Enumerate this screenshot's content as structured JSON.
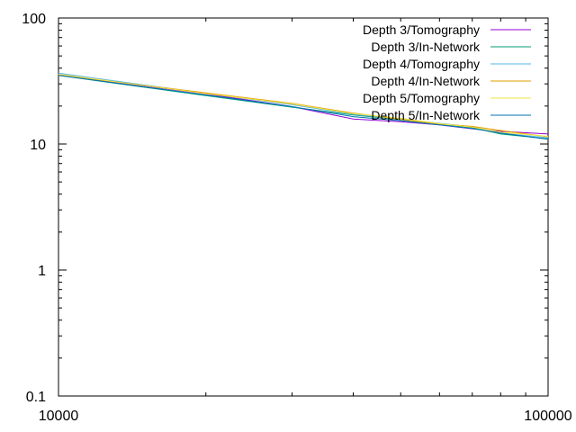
{
  "chart_data": {
    "type": "line",
    "title": "",
    "xlabel": "",
    "ylabel": "",
    "x_scale": "log",
    "y_scale": "log",
    "xlim": [
      10000,
      100000
    ],
    "ylim": [
      0.1,
      100
    ],
    "x_ticks": [
      10000,
      100000
    ],
    "x_tick_labels": [
      "10000",
      "100000"
    ],
    "y_ticks": [
      0.1,
      1,
      10,
      100
    ],
    "y_tick_labels": [
      "0.1",
      "1",
      "10",
      "100"
    ],
    "grid": false,
    "legend_position": "top-right",
    "x": [
      10000,
      20000,
      30000,
      40000,
      50000,
      60000,
      70000,
      80000,
      100000
    ],
    "series": [
      {
        "name": "Depth 3/Tomography",
        "color": "#9400d3",
        "values": [
          35.5,
          25.0,
          19.8,
          15.8,
          15.0,
          14.2,
          13.2,
          12.6,
          12.0
        ]
      },
      {
        "name": "Depth 3/In-Network",
        "color": "#009e73",
        "values": [
          35.0,
          24.2,
          19.6,
          17.0,
          15.6,
          14.4,
          13.5,
          12.0,
          11.0
        ]
      },
      {
        "name": "Depth 4/Tomography",
        "color": "#56b4e9",
        "values": [
          36.5,
          25.2,
          20.5,
          17.2,
          15.8,
          14.6,
          13.7,
          12.2,
          11.2
        ]
      },
      {
        "name": "Depth 4/In-Network",
        "color": "#e69f00",
        "values": [
          35.2,
          25.5,
          21.0,
          17.6,
          15.7,
          14.4,
          13.8,
          12.8,
          11.4
        ]
      },
      {
        "name": "Depth 5/Tomography",
        "color": "#f0e442",
        "values": [
          35.8,
          25.1,
          20.8,
          17.4,
          16.0,
          14.5,
          13.6,
          12.4,
          11.5
        ]
      },
      {
        "name": "Depth 5/In-Network",
        "color": "#0072b2",
        "values": [
          35.0,
          24.5,
          19.8,
          16.5,
          15.3,
          14.2,
          13.3,
          12.2,
          10.9
        ]
      }
    ]
  }
}
